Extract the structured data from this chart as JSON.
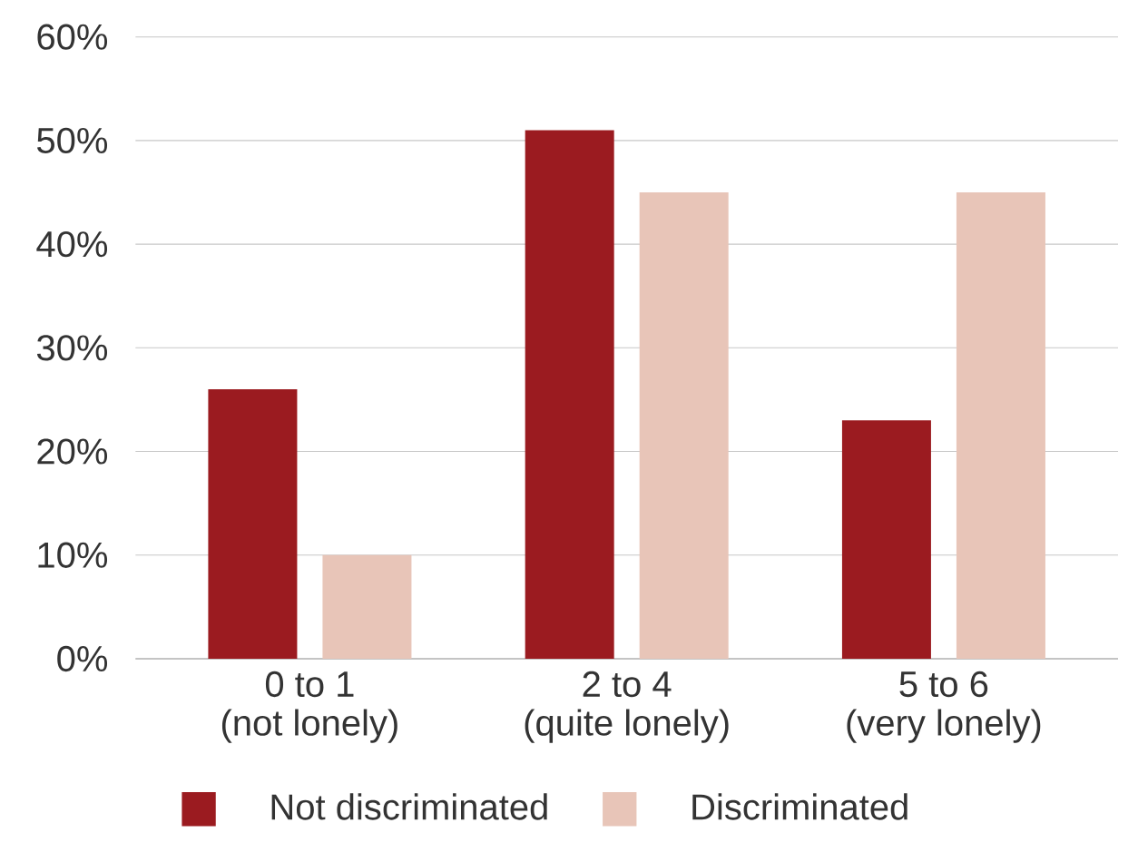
{
  "chart_data": {
    "type": "bar",
    "categories": [
      "0 to 1\n(not lonely)",
      "2 to 4\n(quite lonely)",
      "5 to 6\n(very lonely)"
    ],
    "series": [
      {
        "name": "Not discriminated",
        "color": "#9b1b20",
        "values": [
          26,
          51,
          23
        ]
      },
      {
        "name": "Discriminated",
        "color": "#e8c5b8",
        "values": [
          10,
          45,
          45
        ]
      }
    ],
    "ylim": [
      0,
      60
    ],
    "yticks": [
      {
        "value": 0,
        "label": "0%"
      },
      {
        "value": 10,
        "label": "10%"
      },
      {
        "value": 20,
        "label": "20%"
      },
      {
        "value": 30,
        "label": "30%"
      },
      {
        "value": 40,
        "label": "40%"
      },
      {
        "value": 50,
        "label": "50%"
      },
      {
        "value": 60,
        "label": "60%"
      }
    ],
    "grid": "y",
    "legend": "bottom"
  }
}
